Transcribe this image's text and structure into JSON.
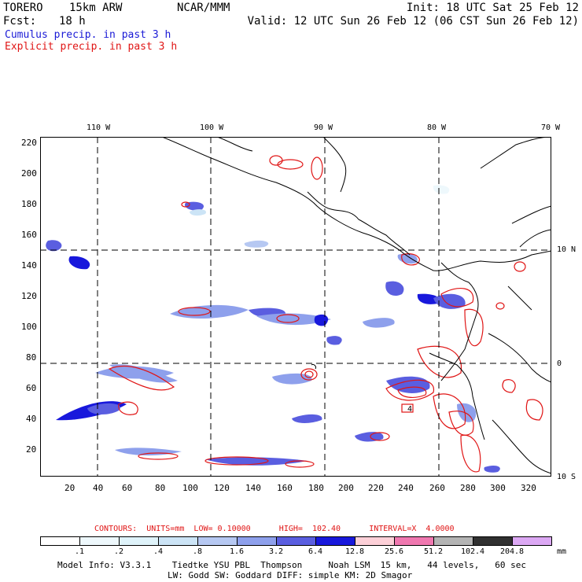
{
  "header": {
    "model": "TORERO",
    "resolution": "15km ARW",
    "center": "NCAR/MMM",
    "init": "Init: 18 UTC Sat 25 Feb 12",
    "fcst_label": "Fcst:",
    "fcst_hours": "18 h",
    "valid": "Valid: 12 UTC Sun 26 Feb 12 (06 CST Sun 26 Feb 12)"
  },
  "legend": {
    "cumulus": "Cumulus precip. in past 3 h",
    "explicit": "Explicit precip. in past 3 h",
    "cumulus_color": "#1a1ad6",
    "explicit_color": "#e01515"
  },
  "map": {
    "lon_labels": [
      "110 W",
      "100 W",
      "90 W",
      "80 W",
      "70 W"
    ],
    "lat_labels": [
      "10 N",
      "0",
      "10 S"
    ],
    "y_ticks": [
      "220",
      "200",
      "180",
      "160",
      "140",
      "120",
      "100",
      "80",
      "60",
      "40",
      "20"
    ],
    "x_ticks": [
      "20",
      "40",
      "60",
      "80",
      "100",
      "120",
      "140",
      "160",
      "180",
      "200",
      "220",
      "240",
      "260",
      "280",
      "300",
      "320"
    ],
    "max_marker": "4"
  },
  "contours": {
    "text": "CONTOURS:  UNITS=mm  LOW= 0.10000      HIGH=  102.40      INTERVAL=X  4.0000"
  },
  "colorbar": {
    "labels": [
      ".1",
      ".2",
      ".4",
      ".8",
      "1.6",
      "3.2",
      "6.4",
      "12.8",
      "25.6",
      "51.2",
      "102.4",
      "204.8"
    ],
    "unit": "mm",
    "colors": [
      "#ffffff",
      "#eef8fc",
      "#dff3fa",
      "#cce4f6",
      "#b6c8f2",
      "#8ea0ec",
      "#5a5ee0",
      "#1818dc",
      "#fdd0d8",
      "#f078b0",
      "#b4b4b4",
      "#303030",
      "#dca8f4"
    ]
  },
  "footer": {
    "line1": "Model Info: V3.3.1    Tiedtke YSU PBL  Thompson     Noah LSM  15 km,   44 levels,   60 sec",
    "line2": "LW: Godd SW: Goddard DIFF: simple KM: 2D Smagor"
  }
}
